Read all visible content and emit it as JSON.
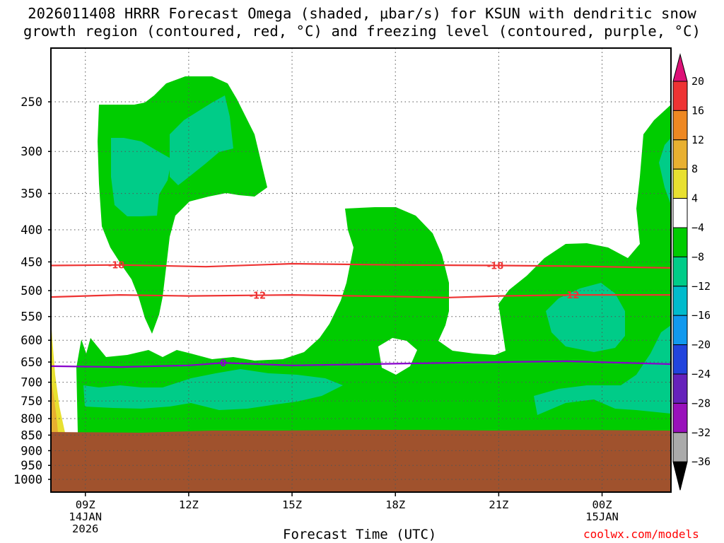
{
  "title": {
    "line1": "2026011408 HRRR Forecast Omega (shaded, μbar/s) for KSUN with dendritic snow",
    "line2": "growth region (contoured, red, °C) and freezing level (contoured, purple, °C)"
  },
  "xlabel": "Forecast Time (UTC)",
  "credit": "coolwx.com/models",
  "chart_data": {
    "type": "time-height cross section",
    "y_axis": {
      "label": "",
      "units": "hPa",
      "ticks": [
        250,
        300,
        350,
        400,
        450,
        500,
        550,
        600,
        650,
        700,
        750,
        800,
        850,
        900,
        950,
        1000
      ],
      "range": [
        1000,
        200
      ],
      "scale": "log-pressure"
    },
    "x_axis": {
      "label": "Forecast Time (UTC)",
      "range_hours": [
        8,
        26
      ],
      "ticks": [
        {
          "hour": 9,
          "label": "09Z",
          "sub1": "14JAN",
          "sub2": "2026"
        },
        {
          "hour": 12,
          "label": "12Z",
          "sub1": "",
          "sub2": ""
        },
        {
          "hour": 15,
          "label": "15Z",
          "sub1": "",
          "sub2": ""
        },
        {
          "hour": 18,
          "label": "18Z",
          "sub1": "",
          "sub2": ""
        },
        {
          "hour": 21,
          "label": "21Z",
          "sub1": "",
          "sub2": ""
        },
        {
          "hour": 24,
          "label": "00Z",
          "sub1": "15JAN",
          "sub2": ""
        }
      ]
    },
    "grid": true,
    "colorbar": {
      "levels": [
        "20",
        "16",
        "12",
        "8",
        "4",
        "−4",
        "−8",
        "−12",
        "−16",
        "−20",
        "−24",
        "−28",
        "−32",
        "−36"
      ],
      "colors": [
        "#ee3333",
        "#ee8822",
        "#e8b030",
        "#e8e030",
        "#ffffff",
        "#00cc00",
        "#00cc88",
        "#00bbcc",
        "#1199ee",
        "#2244dd",
        "#6622bb",
        "#9911bb",
        "#aaaaaa"
      ],
      "over_color": "#dd1177",
      "under_color": "#000000"
    },
    "shading_regions": [
      {
        "name": "omega -4 to -8",
        "color": "#00cc00"
      },
      {
        "name": "omega -8 to -12",
        "color": "#00cc88"
      },
      {
        "name": "omega 4 to 8",
        "color": "#e8e030"
      },
      {
        "name": "omega 8 to 12",
        "color": "#e8b030"
      },
      {
        "name": "below ground",
        "color": "#a0522d"
      }
    ],
    "contours": [
      {
        "name": "dendritic growth -18",
        "label": "-18",
        "color": "#ee3333",
        "points": [
          [
            8,
            456
          ],
          [
            10,
            455
          ],
          [
            12.5,
            458
          ],
          [
            15,
            453
          ],
          [
            18,
            455
          ],
          [
            21,
            456
          ],
          [
            23,
            457
          ],
          [
            26,
            460
          ]
        ]
      },
      {
        "name": "dendritic growth -12",
        "label": "-12",
        "color": "#ee3333",
        "points": [
          [
            8,
            512
          ],
          [
            10,
            508
          ],
          [
            12,
            510
          ],
          [
            15,
            508
          ],
          [
            18,
            511
          ],
          [
            19.5,
            513
          ],
          [
            21,
            510
          ],
          [
            23,
            508
          ],
          [
            26,
            508
          ]
        ]
      },
      {
        "name": "freezing level 0",
        "label": "0",
        "color": "#8800cc",
        "points": [
          [
            8,
            660
          ],
          [
            10,
            662
          ],
          [
            12,
            658
          ],
          [
            13,
            652
          ],
          [
            15,
            658
          ],
          [
            18,
            654
          ],
          [
            21,
            650
          ],
          [
            23,
            648
          ],
          [
            26,
            655
          ]
        ]
      }
    ]
  }
}
